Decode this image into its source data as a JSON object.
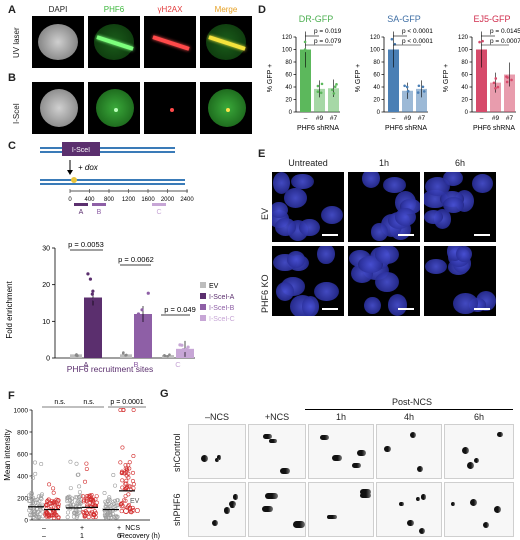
{
  "panel_letters": {
    "A": "A",
    "B": "B",
    "C": "C",
    "D": "D",
    "E": "E",
    "F": "F",
    "G": "G"
  },
  "panelA": {
    "channels": [
      "DAPI",
      "PHF6",
      "γH2AX",
      "Merge"
    ],
    "channel_colors": [
      "#ffffff",
      "#3db83d",
      "#e23b3b",
      "#e6a126"
    ],
    "row_a": "UV laser",
    "row_b": "I-SceI"
  },
  "panelC": {
    "construct_box": "I-SceI",
    "dox": "+ dox",
    "scale_ticks": [
      "0",
      "400",
      "800",
      "1200",
      "1600",
      "2000",
      "2400"
    ],
    "sites": [
      "A",
      "B",
      "C"
    ],
    "legend": [
      "EV",
      "I-SceI-A",
      "I-SceI-B",
      "I-SceI-C"
    ],
    "pvalues": [
      "p = 0.0053",
      "p = 0.0062",
      "p = 0.049"
    ],
    "ylabel": "Fold enrichment",
    "xlabel": "PHF6 recruitment sites"
  },
  "panelD": {
    "ylabel": "% GFP +",
    "xlabel": "PHF6 shRNA",
    "xticks": [
      "–",
      "#9",
      "#7"
    ]
  },
  "panelE": {
    "columns": [
      "Untreated",
      "1h",
      "6h"
    ],
    "rows": [
      "EV",
      "PHF6 KO"
    ]
  },
  "panelF": {
    "ylabel": "Mean intensity",
    "pvalues": [
      "n.s.",
      "n.s.",
      "p = 0.0001"
    ],
    "legend": [
      "EV",
      "KO"
    ],
    "ncs_label": "NCS",
    "recovery_label": "Recovery (h)",
    "ncs_values": [
      "–",
      "+",
      "+"
    ],
    "recovery_values": [
      "–",
      "1",
      "6"
    ]
  },
  "panelG": {
    "columns": [
      "–NCS",
      "+NCS",
      "1h",
      "4h",
      "6h"
    ],
    "group": "Post-NCS",
    "rows": [
      "shControl",
      "shPHF6"
    ]
  },
  "chart_data": [
    {
      "type": "bar",
      "panel": "C",
      "categories": [
        "A",
        "B",
        "C"
      ],
      "series": [
        {
          "name": "EV",
          "values": [
            1.0,
            1.0,
            0.8
          ]
        },
        {
          "name": "I-SceI-A",
          "values": [
            16.5,
            null,
            null
          ]
        },
        {
          "name": "I-SceI-B",
          "values": [
            null,
            12.0,
            null
          ]
        },
        {
          "name": "I-SceI-C",
          "values": [
            null,
            null,
            2.5
          ]
        }
      ],
      "ylabel": "Fold enrichment",
      "xlabel": "PHF6 recruitment sites",
      "yticks": [
        0,
        10,
        20,
        30
      ],
      "ylim": [
        0,
        30
      ]
    },
    {
      "type": "bar",
      "panel": "D",
      "title": "DR-GFP",
      "categories": [
        "–",
        "#9",
        "#7"
      ],
      "values": [
        100,
        37,
        38
      ],
      "ylabel": "% GFP +",
      "xlabel": "PHF6 shRNA",
      "yticks": [
        0,
        20,
        40,
        60,
        80,
        100,
        120
      ],
      "ylim": [
        0,
        120
      ],
      "pvalues": [
        "p = 0.019",
        "p = 0.079"
      ],
      "color": "#5cb85c"
    },
    {
      "type": "bar",
      "panel": "D",
      "title": "SA-GFP",
      "categories": [
        "–",
        "#9",
        "#7"
      ],
      "values": [
        100,
        34,
        37
      ],
      "ylabel": "% GFP +",
      "xlabel": "PHF6 shRNA",
      "yticks": [
        0,
        20,
        40,
        60,
        80,
        100,
        120
      ],
      "ylim": [
        0,
        120
      ],
      "pvalues": [
        "p < 0.0001",
        "p < 0.0001"
      ],
      "color": "#4a7fb5"
    },
    {
      "type": "bar",
      "panel": "D",
      "title": "EJ5-GFP",
      "categories": [
        "–",
        "#9",
        "#7"
      ],
      "values": [
        100,
        47,
        60
      ],
      "ylabel": "% GFP +",
      "xlabel": "PHF6 shRNA",
      "yticks": [
        0,
        20,
        40,
        60,
        80,
        100,
        120
      ],
      "ylim": [
        0,
        120
      ],
      "pvalues": [
        "p = 0.0145",
        "p = 0.0007"
      ],
      "color": "#d64a6a"
    },
    {
      "type": "scatter",
      "panel": "F",
      "categories": [
        "– / –",
        "+ / 1",
        "+ / 6"
      ],
      "series": [
        {
          "name": "EV",
          "medians": [
            120,
            110,
            95
          ]
        },
        {
          "name": "KO",
          "medians": [
            95,
            115,
            265
          ]
        }
      ],
      "ylabel": "Mean intensity",
      "yticks": [
        0,
        200,
        400,
        600,
        800,
        1000
      ],
      "ylim": [
        0,
        1000
      ]
    }
  ]
}
